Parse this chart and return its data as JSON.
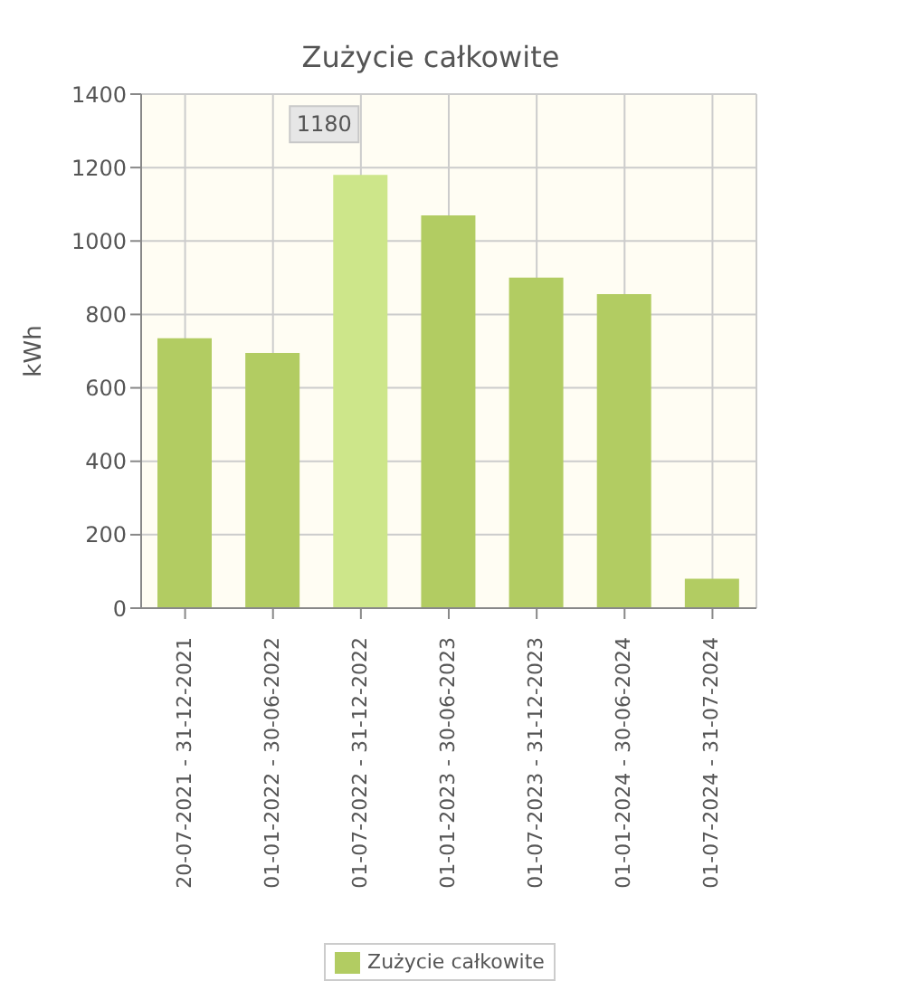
{
  "chart_data": {
    "type": "bar",
    "title": "Zużycie całkowite",
    "ylabel": "kWh",
    "categories": [
      "20-07-2021 - 31-12-2021",
      "01-01-2022 - 30-06-2022",
      "01-07-2022 - 31-12-2022",
      "01-01-2023 - 30-06-2023",
      "01-07-2023 - 31-12-2023",
      "01-01-2024 - 30-06-2024",
      "01-07-2024 - 31-07-2024"
    ],
    "series": [
      {
        "name": "Zużycie całkowite",
        "color": "#b2cc62",
        "colors": [
          "#b2cc62",
          "#b2cc62",
          "#cde68a",
          "#b2cc62",
          "#b2cc62",
          "#b2cc62",
          "#b2cc62"
        ],
        "values": [
          735,
          695,
          1180,
          1070,
          900,
          855,
          80
        ],
        "value_labels": [
          null,
          null,
          "1180",
          null,
          null,
          null,
          null
        ]
      }
    ],
    "ylim": [
      0,
      1400
    ],
    "yticks": [
      0,
      200,
      400,
      600,
      800,
      1000,
      1200,
      1400
    ],
    "grid": true,
    "legend": "bottom"
  }
}
